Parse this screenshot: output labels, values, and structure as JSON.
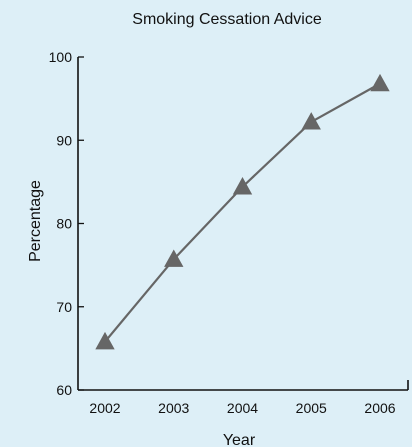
{
  "background": "#ddeff7",
  "chart_data": {
    "type": "line",
    "title": "Smoking Cessation Advice",
    "xlabel": "Year",
    "ylabel": "Percentage",
    "categories": [
      "2002",
      "2003",
      "2004",
      "2005",
      "2006"
    ],
    "series": [
      {
        "values": [
          65.8,
          75.7,
          84.4,
          92.2,
          96.8
        ],
        "color": "#666666",
        "marker": "triangle"
      }
    ],
    "ylim": [
      60,
      100
    ],
    "yticks": [
      "60",
      "70",
      "80",
      "90",
      "100"
    ],
    "grid": false,
    "legend": "none"
  }
}
